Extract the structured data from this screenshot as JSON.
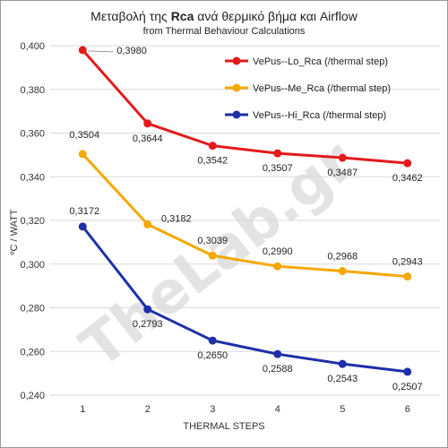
{
  "chart_data": {
    "type": "line",
    "title_prefix": "Μεταβολή της ",
    "title_bold": "Rca",
    "title_suffix": " ανά θερμικό βήμα και  Airflow",
    "subtitle": "from Thermal Behaviour Calculations",
    "xlabel": "THERMAL  STEPS",
    "ylabel": "ºC / WATT",
    "categories": [
      "1",
      "2",
      "3",
      "4",
      "5",
      "6"
    ],
    "ylim": [
      0.24,
      0.4
    ],
    "ytick_values": [
      0.24,
      0.26,
      0.28,
      0.3,
      0.32,
      0.34,
      0.36,
      0.38,
      0.4
    ],
    "ytick_labels": [
      "0,240",
      "0,260",
      "0,280",
      "0,300",
      "0,320",
      "0,340",
      "0,360",
      "0,380",
      "0,400"
    ],
    "grid": true,
    "legend_position": "top-right",
    "series": [
      {
        "name": "VePus--Lo_Rca (/thermal step)",
        "color": "#e31a1c",
        "values": [
          0.398,
          0.3644,
          0.3542,
          0.3507,
          0.3487,
          0.3462
        ],
        "labels": [
          "0,3980",
          "0,3644",
          "0,3542",
          "0,3507",
          "0,3487",
          "0,3462"
        ]
      },
      {
        "name": "VePus--Me_Rca (/thermal step)",
        "color": "#f5a800",
        "values": [
          0.3504,
          0.3182,
          0.3039,
          0.299,
          0.2968,
          0.2943
        ],
        "labels": [
          "0,3504",
          "0,3182",
          "0,3039",
          "0,2990",
          "0,2968",
          "0,2943"
        ]
      },
      {
        "name": "VePus--Hi_Rca (/thermal step)",
        "color": "#1f2fa8",
        "values": [
          0.3172,
          0.2793,
          0.265,
          0.2588,
          0.2543,
          0.2507
        ],
        "labels": [
          "0,3172",
          "0,2793",
          "0,2650",
          "0,2588",
          "0,2543",
          "0,2507"
        ]
      }
    ]
  },
  "watermark_text": "TheLab.gr"
}
